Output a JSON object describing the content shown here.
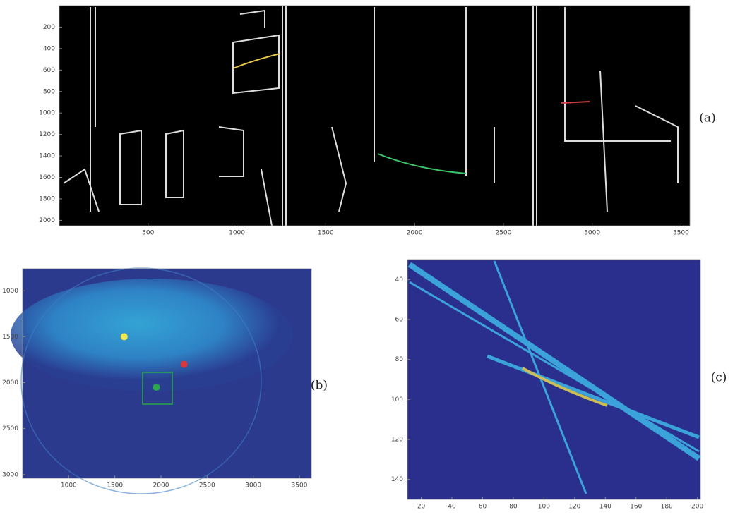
{
  "panels": [
    {
      "label": "(a)",
      "xlim": [
        0,
        3550
      ],
      "ylim": [
        0,
        2050
      ],
      "xticks": [
        500,
        1000,
        1500,
        2000,
        2500,
        3000,
        3500
      ],
      "yticks": [
        200,
        400,
        600,
        800,
        1000,
        1200,
        1400,
        1600,
        1800,
        2000
      ]
    },
    {
      "label": "(b)",
      "xlim": [
        500,
        3630
      ],
      "ylim": [
        760,
        3040
      ],
      "xticks": [
        1000,
        1500,
        2000,
        2500,
        3000,
        3500
      ],
      "yticks": [
        1000,
        1500,
        2000,
        2500,
        3000
      ],
      "markers": [
        {
          "x": 1600,
          "y": 1500,
          "color": "#f2e94e"
        },
        {
          "x": 2250,
          "y": 1800,
          "color": "#d9363e"
        },
        {
          "x": 1950,
          "y": 2050,
          "color": "#2aa84a"
        }
      ]
    },
    {
      "label": "(c)",
      "xlim": [
        11,
        202
      ],
      "ylim": [
        30,
        150
      ],
      "xticks": [
        20,
        40,
        60,
        80,
        100,
        120,
        140,
        160,
        180,
        200
      ],
      "yticks": [
        40,
        60,
        80,
        100,
        120,
        140
      ]
    }
  ]
}
